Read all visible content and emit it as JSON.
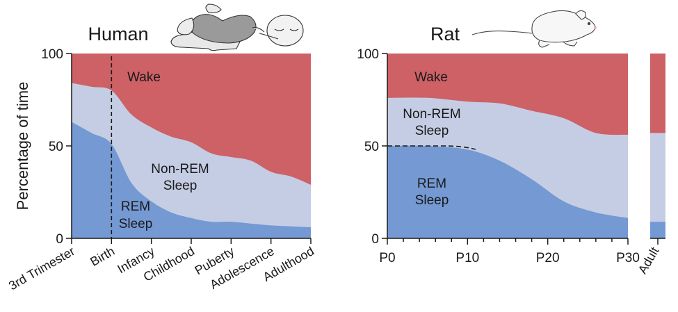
{
  "colors": {
    "wake": "#cd6166",
    "nrem": "#c5cde4",
    "rem": "#7499d3",
    "axis": "#1a1a1a"
  },
  "icons": [
    "sleeping-infant-icon",
    "rat-icon"
  ],
  "chart_data": [
    {
      "type": "area",
      "title": "Human",
      "ylabel": "Percentage of time",
      "ylim": [
        0,
        100
      ],
      "yticks": [
        "0",
        "50",
        "100"
      ],
      "categories": [
        "3rd Trimester",
        "Birth",
        "Infancy",
        "Childhood",
        "Puberty",
        "Adolescence",
        "Adulthood"
      ],
      "marker": {
        "category": "Birth",
        "style": "dashed"
      },
      "labels": {
        "wake": "Wake",
        "nrem_1": "Non-REM",
        "nrem_2": "Sleep",
        "rem_1": "REM",
        "rem_2": "Sleep"
      },
      "series": [
        {
          "name": "REM Sleep",
          "x": [
            0,
            0.5,
            1,
            1.5,
            2,
            2.5,
            3,
            3.5,
            4,
            4.5,
            5,
            5.5,
            6
          ],
          "values": [
            63,
            57,
            51,
            30,
            20,
            14,
            11,
            9,
            9,
            8,
            7,
            6.5,
            6
          ]
        },
        {
          "name": "Non-REM Sleep",
          "x": [
            0,
            0.5,
            1,
            1.5,
            2,
            2.5,
            3,
            3.5,
            4,
            4.5,
            5,
            5.5,
            6
          ],
          "values": [
            21,
            25,
            29,
            37,
            40,
            41,
            41,
            37,
            35,
            34,
            29,
            27,
            23
          ]
        },
        {
          "name": "Wake",
          "x": [
            0,
            0.5,
            1,
            1.5,
            2,
            2.5,
            3,
            3.5,
            4,
            4.5,
            5,
            5.5,
            6
          ],
          "values": [
            16,
            18,
            20,
            33,
            40,
            45,
            48,
            54,
            56,
            58,
            64,
            66.5,
            71
          ]
        }
      ]
    },
    {
      "type": "area",
      "title": "Rat",
      "ylim": [
        0,
        100
      ],
      "yticks": [
        "0",
        "50",
        "100"
      ],
      "xlim": [
        0,
        30
      ],
      "xticks": [
        "P0",
        "P10",
        "P20",
        "P30"
      ],
      "extra_bar": {
        "label": "Adult",
        "values": {
          "REM Sleep": 9,
          "Non-REM Sleep": 48,
          "Wake": 43
        }
      },
      "reference_line": {
        "y": 50,
        "x": [
          0,
          11
        ],
        "style": "dashed"
      },
      "labels": {
        "wake": "Wake",
        "nrem_1": "Non-REM",
        "nrem_2": "Sleep",
        "rem_1": "REM",
        "rem_2": "Sleep"
      },
      "series": [
        {
          "name": "REM Sleep",
          "x": [
            0,
            5,
            10,
            14,
            18,
            22,
            26,
            30
          ],
          "values": [
            50,
            50,
            48,
            42,
            32,
            20,
            14,
            11
          ]
        },
        {
          "name": "Non-REM Sleep",
          "x": [
            0,
            5,
            10,
            14,
            18,
            22,
            26,
            30
          ],
          "values": [
            26,
            26,
            26,
            31,
            37,
            45,
            43,
            45
          ]
        },
        {
          "name": "Wake",
          "x": [
            0,
            5,
            10,
            14,
            18,
            22,
            26,
            30
          ],
          "values": [
            24,
            24,
            26,
            27,
            31,
            35,
            43,
            44
          ]
        }
      ]
    }
  ]
}
